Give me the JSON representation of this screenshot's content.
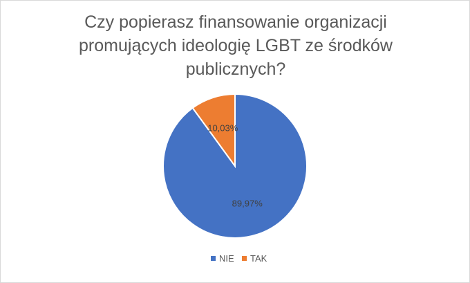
{
  "chart_data": {
    "type": "pie",
    "title": "Czy popierasz finansowanie organizacji promujących ideologię LGBT ze środków publicznych?",
    "categories": [
      "NIE",
      "TAK"
    ],
    "values": [
      89.97,
      10.03
    ],
    "data_labels": [
      "89,97%",
      "10,03%"
    ],
    "colors": [
      "#4472c4",
      "#ed7d31"
    ],
    "legend_position": "bottom"
  }
}
